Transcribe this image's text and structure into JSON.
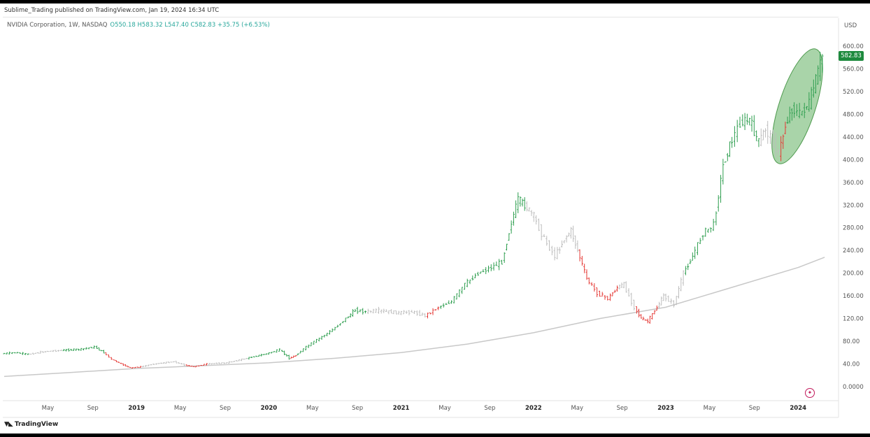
{
  "header": {
    "published": "Sublime_Trading published on TradingView.com, Jan 19, 2024 16:34 UTC"
  },
  "legend": {
    "symbol": "NVIDIA Corporation, 1W, NASDAQ",
    "ohlc": "O550.18  H583.32  L547.40  C582.83  +35.75 (+6.53%)"
  },
  "axis": {
    "currency": "USD"
  },
  "last_price_label": "582.83",
  "footer": {
    "brand": "TradingView"
  },
  "colors": {
    "up": "#2e9e4f",
    "down": "#e53935",
    "neutral": "#bdbdbd",
    "sma": "#c8c8c8",
    "highlight_fill": "#6fb86f",
    "price_tag": "#1e8a3e"
  },
  "chart_data": {
    "type": "line",
    "ylim": [
      0,
      640
    ],
    "y_ticks": [
      "600.00",
      "560.00",
      "520.00",
      "480.00",
      "440.00",
      "400.00",
      "360.00",
      "320.00",
      "280.00",
      "240.00",
      "200.00",
      "160.00",
      "120.00",
      "80.00",
      "40.00",
      "0.0000"
    ],
    "y_tick_values": [
      600,
      560,
      520,
      480,
      440,
      400,
      360,
      320,
      280,
      240,
      200,
      160,
      120,
      80,
      40,
      0
    ],
    "x_labels": [
      {
        "t": 2018.33,
        "label": "May",
        "bold": false
      },
      {
        "t": 2018.67,
        "label": "Sep",
        "bold": false
      },
      {
        "t": 2019.0,
        "label": "2019",
        "bold": true
      },
      {
        "t": 2019.33,
        "label": "May",
        "bold": false
      },
      {
        "t": 2019.67,
        "label": "Sep",
        "bold": false
      },
      {
        "t": 2020.0,
        "label": "2020",
        "bold": true
      },
      {
        "t": 2020.33,
        "label": "May",
        "bold": false
      },
      {
        "t": 2020.67,
        "label": "Sep",
        "bold": false
      },
      {
        "t": 2021.0,
        "label": "2021",
        "bold": true
      },
      {
        "t": 2021.33,
        "label": "May",
        "bold": false
      },
      {
        "t": 2021.67,
        "label": "Sep",
        "bold": false
      },
      {
        "t": 2022.0,
        "label": "2022",
        "bold": true
      },
      {
        "t": 2022.33,
        "label": "May",
        "bold": false
      },
      {
        "t": 2022.67,
        "label": "Sep",
        "bold": false
      },
      {
        "t": 2023.0,
        "label": "2023",
        "bold": true
      },
      {
        "t": 2023.33,
        "label": "May",
        "bold": false
      },
      {
        "t": 2023.67,
        "label": "Sep",
        "bold": false
      },
      {
        "t": 2024.0,
        "label": "2024",
        "bold": true
      }
    ],
    "price_path": [
      [
        2018.0,
        58,
        "up"
      ],
      [
        2018.1,
        60,
        "up"
      ],
      [
        2018.2,
        57,
        "neutral"
      ],
      [
        2018.33,
        62,
        "neutral"
      ],
      [
        2018.45,
        64,
        "up"
      ],
      [
        2018.6,
        66,
        "up"
      ],
      [
        2018.7,
        70,
        "up"
      ],
      [
        2018.77,
        60,
        "down"
      ],
      [
        2018.83,
        48,
        "down"
      ],
      [
        2018.9,
        40,
        "down"
      ],
      [
        2018.97,
        33,
        "down"
      ],
      [
        2019.05,
        35,
        "neutral"
      ],
      [
        2019.15,
        40,
        "neutral"
      ],
      [
        2019.3,
        44,
        "neutral"
      ],
      [
        2019.38,
        38,
        "down"
      ],
      [
        2019.45,
        35,
        "down"
      ],
      [
        2019.55,
        40,
        "neutral"
      ],
      [
        2019.7,
        42,
        "neutral"
      ],
      [
        2019.85,
        50,
        "up"
      ],
      [
        2020.0,
        58,
        "up"
      ],
      [
        2020.1,
        65,
        "up"
      ],
      [
        2020.17,
        50,
        "down"
      ],
      [
        2020.22,
        55,
        "up"
      ],
      [
        2020.3,
        70,
        "up"
      ],
      [
        2020.4,
        85,
        "up"
      ],
      [
        2020.5,
        100,
        "up"
      ],
      [
        2020.6,
        120,
        "up"
      ],
      [
        2020.67,
        135,
        "up"
      ],
      [
        2020.75,
        132,
        "neutral"
      ],
      [
        2020.85,
        134,
        "neutral"
      ],
      [
        2021.0,
        130,
        "neutral"
      ],
      [
        2021.1,
        132,
        "neutral"
      ],
      [
        2021.2,
        125,
        "down"
      ],
      [
        2021.3,
        140,
        "up"
      ],
      [
        2021.4,
        150,
        "up"
      ],
      [
        2021.5,
        180,
        "up"
      ],
      [
        2021.6,
        200,
        "up"
      ],
      [
        2021.7,
        210,
        "up"
      ],
      [
        2021.78,
        220,
        "up"
      ],
      [
        2021.85,
        290,
        "up"
      ],
      [
        2021.9,
        330,
        "up"
      ],
      [
        2021.95,
        320,
        "neutral"
      ],
      [
        2022.02,
        300,
        "neutral"
      ],
      [
        2022.1,
        260,
        "neutral"
      ],
      [
        2022.18,
        230,
        "neutral"
      ],
      [
        2022.25,
        260,
        "neutral"
      ],
      [
        2022.3,
        275,
        "neutral"
      ],
      [
        2022.35,
        240,
        "down"
      ],
      [
        2022.42,
        190,
        "down"
      ],
      [
        2022.5,
        165,
        "down"
      ],
      [
        2022.58,
        155,
        "down"
      ],
      [
        2022.65,
        175,
        "neutral"
      ],
      [
        2022.7,
        180,
        "neutral"
      ],
      [
        2022.78,
        140,
        "down"
      ],
      [
        2022.83,
        120,
        "down"
      ],
      [
        2022.88,
        115,
        "down"
      ],
      [
        2022.95,
        140,
        "neutral"
      ],
      [
        2023.0,
        160,
        "neutral"
      ],
      [
        2023.08,
        145,
        "neutral"
      ],
      [
        2023.15,
        200,
        "up"
      ],
      [
        2023.22,
        230,
        "up"
      ],
      [
        2023.3,
        270,
        "up"
      ],
      [
        2023.38,
        285,
        "up"
      ],
      [
        2023.45,
        390,
        "up"
      ],
      [
        2023.5,
        425,
        "up"
      ],
      [
        2023.58,
        465,
        "up"
      ],
      [
        2023.65,
        470,
        "up"
      ],
      [
        2023.72,
        430,
        "neutral"
      ],
      [
        2023.77,
        455,
        "neutral"
      ],
      [
        2023.83,
        430,
        "neutral"
      ],
      [
        2023.87,
        410,
        "down"
      ],
      [
        2023.92,
        460,
        "up"
      ],
      [
        2023.97,
        490,
        "up"
      ],
      [
        2024.03,
        480,
        "up"
      ],
      [
        2024.1,
        500,
        "up"
      ],
      [
        2024.15,
        540,
        "up"
      ],
      [
        2024.2,
        583,
        "up"
      ]
    ],
    "sma": [
      [
        2018.0,
        18
      ],
      [
        2018.5,
        25
      ],
      [
        2019.0,
        32
      ],
      [
        2019.5,
        37
      ],
      [
        2020.0,
        42
      ],
      [
        2020.5,
        50
      ],
      [
        2021.0,
        60
      ],
      [
        2021.5,
        75
      ],
      [
        2022.0,
        95
      ],
      [
        2022.5,
        120
      ],
      [
        2023.0,
        140
      ],
      [
        2023.5,
        175
      ],
      [
        2024.0,
        210
      ],
      [
        2024.2,
        228
      ]
    ]
  }
}
